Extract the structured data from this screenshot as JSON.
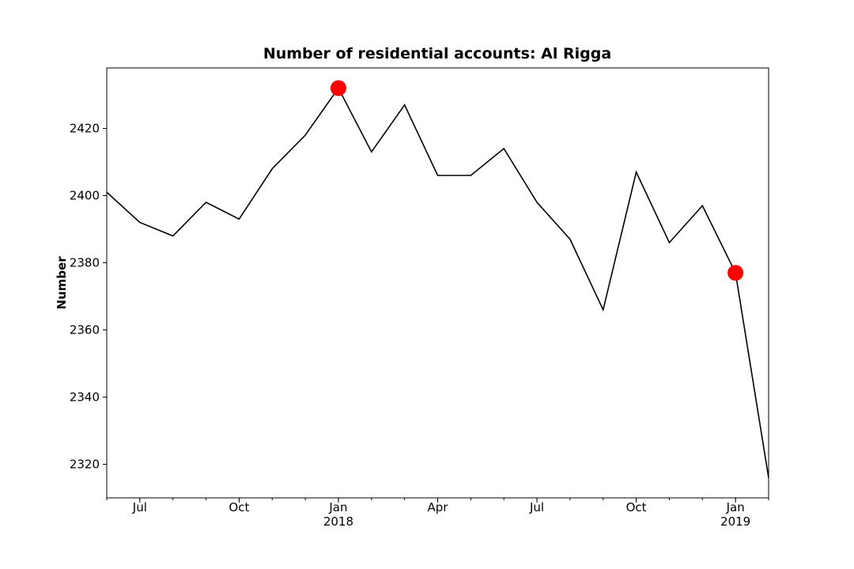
{
  "chart_data": {
    "type": "line",
    "title": "Number of residential accounts: Al Rigga",
    "ylabel": "Number",
    "x": [
      "2017-06",
      "2017-07",
      "2017-08",
      "2017-09",
      "2017-10",
      "2017-11",
      "2017-12",
      "2018-01",
      "2018-02",
      "2018-03",
      "2018-04",
      "2018-05",
      "2018-06",
      "2018-07",
      "2018-08",
      "2018-09",
      "2018-10",
      "2018-11",
      "2018-12",
      "2019-01",
      "2019-02"
    ],
    "series": [
      {
        "color": "#000000",
        "values": [
          2401,
          2392,
          2388,
          2398,
          2393,
          2408,
          2418,
          2432,
          2413,
          2427,
          2406,
          2406,
          2414,
          2398,
          2387,
          2366,
          2407,
          2386,
          2397,
          2377,
          2316
        ]
      }
    ],
    "highlights": {
      "color": "#ff0000",
      "x": [
        "2018-01",
        "2019-01"
      ],
      "values": [
        2432,
        2377
      ]
    },
    "xlim": [
      "2017-06",
      "2019-02"
    ],
    "xticks": [
      {
        "value": "2017-07",
        "label": "Jul"
      },
      {
        "value": "2017-10",
        "label": "Oct"
      },
      {
        "value": "2018-01",
        "label": "Jan\n2018"
      },
      {
        "value": "2018-04",
        "label": "Apr"
      },
      {
        "value": "2018-07",
        "label": "Jul"
      },
      {
        "value": "2018-10",
        "label": "Oct"
      },
      {
        "value": "2019-01",
        "label": "Jan\n2019"
      }
    ],
    "ylim": [
      2310,
      2438
    ],
    "yticks": [
      2320,
      2340,
      2360,
      2380,
      2400,
      2420
    ]
  }
}
